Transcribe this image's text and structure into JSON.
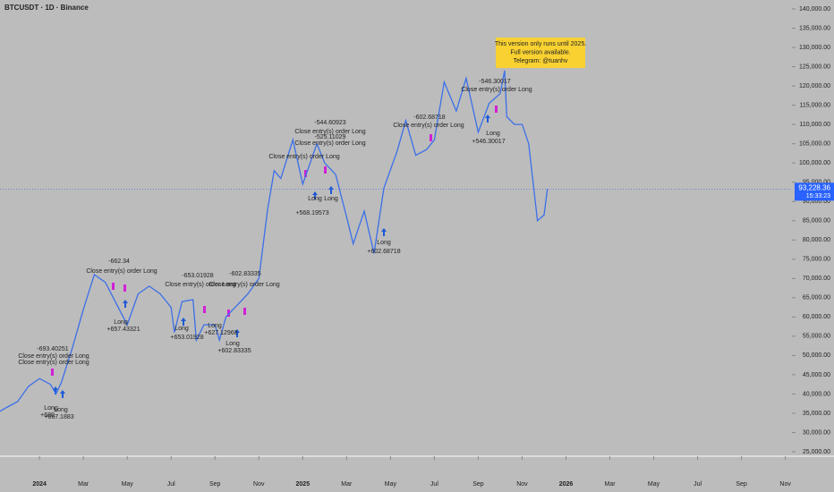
{
  "chart_data": {
    "type": "line",
    "title": "BTCUSDT · 1D · Binance",
    "x": [
      -1.8,
      -1.5,
      -1.0,
      -0.5,
      0,
      0.5,
      0.75,
      1.0,
      1.5,
      2.0,
      2.5,
      3.0,
      3.5,
      4.0,
      4.5,
      5.0,
      5.5,
      6.0,
      6.15,
      6.5,
      7.0,
      7.15,
      7.5,
      8.0,
      8.2,
      8.5,
      9.0,
      9.5,
      10.0,
      10.4,
      10.7,
      11.0,
      11.55,
      12.0,
      12.65,
      13.0,
      13.5,
      14.0,
      14.3,
      14.8,
      15.25,
      15.7,
      16.3,
      16.7,
      17.15,
      17.65,
      18.0,
      18.45,
      19.0,
      19.45,
      20.0,
      20.5,
      21.0,
      21.2,
      21.3,
      21.65,
      22.0,
      22.3,
      22.7,
      23.0,
      23.15
    ],
    "series": [
      {
        "name": "BTCUSDT",
        "color": "#3b6fe8",
        "values": [
          35500,
          36500,
          38000,
          42000,
          44000,
          42500,
          40000,
          43000,
          52000,
          62000,
          71000,
          69000,
          63500,
          58000,
          66000,
          68000,
          66000,
          62500,
          56000,
          64000,
          64500,
          54000,
          58000,
          58000,
          54000,
          60000,
          63000,
          66000,
          70000,
          88000,
          98000,
          96000,
          106000,
          94500,
          105000,
          100000,
          97000,
          86000,
          79000,
          87500,
          76500,
          93500,
          103000,
          111000,
          102000,
          103500,
          106000,
          121000,
          113500,
          122000,
          108000,
          115500,
          118000,
          124000,
          112000,
          110000,
          110000,
          105000,
          85000,
          86500,
          93228.36
        ]
      }
    ],
    "xlim": [
      -1.8,
      34.3
    ],
    "ylim": [
      23840,
      142320
    ],
    "xticks": [
      {
        "value": 0,
        "label": "2024"
      },
      {
        "value": 2,
        "label": "Mar"
      },
      {
        "value": 4,
        "label": "May"
      },
      {
        "value": 6,
        "label": "Jul"
      },
      {
        "value": 8,
        "label": "Sep"
      },
      {
        "value": 10,
        "label": "Nov"
      },
      {
        "value": 12,
        "label": "2025"
      },
      {
        "value": 14,
        "label": "Mar"
      },
      {
        "value": 16,
        "label": "May"
      },
      {
        "value": 18,
        "label": "Jul"
      },
      {
        "value": 20,
        "label": "Sep"
      },
      {
        "value": 22,
        "label": "Nov"
      },
      {
        "value": 24,
        "label": "2026"
      },
      {
        "value": 26,
        "label": "Mar"
      },
      {
        "value": 28,
        "label": "May"
      },
      {
        "value": 30,
        "label": "Jul"
      },
      {
        "value": 32,
        "label": "Sep"
      },
      {
        "value": 34,
        "label": "Nov"
      }
    ],
    "yticks": [
      {
        "value": 25000,
        "label": "25,000.00"
      },
      {
        "value": 30000,
        "label": "30,000.00"
      },
      {
        "value": 35000,
        "label": "35,000.00"
      },
      {
        "value": 40000,
        "label": "40,000.00"
      },
      {
        "value": 45000,
        "label": "45,000.00"
      },
      {
        "value": 50000,
        "label": "50,000.00"
      },
      {
        "value": 55000,
        "label": "55,000.00"
      },
      {
        "value": 60000,
        "label": "60,000.00"
      },
      {
        "value": 65000,
        "label": "65,000.00"
      },
      {
        "value": 70000,
        "label": "70,000.00"
      },
      {
        "value": 75000,
        "label": "75,000.00"
      },
      {
        "value": 80000,
        "label": "80,000.00"
      },
      {
        "value": 85000,
        "label": "85,000.00"
      },
      {
        "value": 90000,
        "label": "90,000.00"
      },
      {
        "value": 95000,
        "label": "95,000.00"
      },
      {
        "value": 100000,
        "label": "100,000.00"
      },
      {
        "value": 105000,
        "label": "105,000.00"
      },
      {
        "value": 110000,
        "label": "110,000.00"
      },
      {
        "value": 115000,
        "label": "115,000.00"
      },
      {
        "value": 120000,
        "label": "120,000.00"
      },
      {
        "value": 125000,
        "label": "125,000.00"
      },
      {
        "value": 130000,
        "label": "130,000.00"
      },
      {
        "value": 135000,
        "label": "135,000.00"
      },
      {
        "value": 140000,
        "label": "140,000.00"
      }
    ],
    "last_price": {
      "value": 93228.36,
      "label": "93,228.36"
    },
    "countdown": "15:33:23",
    "note": [
      "This version only runs until 2025.",
      "Full version available.",
      "Telegram: @tuanhv"
    ],
    "annotations": [
      "-693.40251",
      "Close entry(s) order Long",
      "Close entry(s) order Long",
      "Long",
      "+680.",
      "Long",
      "+667.1883",
      "-662.34",
      "Close entry(s) order Long",
      "Long",
      "+657.43321",
      "-653.01928",
      "Close entry(s) order Long",
      "Long",
      "+653.01928",
      "Long",
      "+627.12968",
      "-602.83335",
      "Close entry(s) order Long",
      "Long",
      "+602.83335",
      "-544.60923",
      "Close entry(s) order Long",
      "-525.11029",
      "Close entry(s) order Long",
      "Close entry(s) order Long",
      "Long",
      "Long",
      "+568.19573",
      "-602.68718",
      "Close entry(s) order Long",
      "Long",
      "+602.68718",
      "-546.30017",
      "Close entry(s) order Long",
      "Long",
      "+546.30017"
    ]
  }
}
